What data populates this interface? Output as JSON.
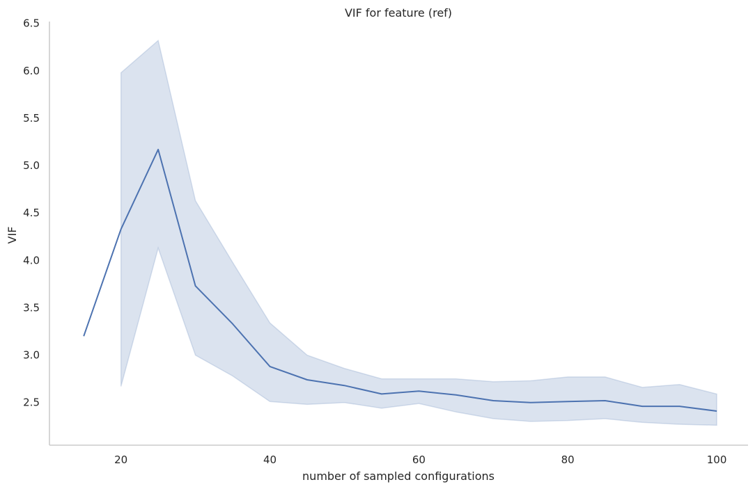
{
  "chart_data": {
    "type": "line",
    "title": "VIF for feature (ref)",
    "xlabel": "number of sampled configurations",
    "ylabel": "VIF",
    "xlim": [
      10.4,
      104.2
    ],
    "ylim": [
      2.05,
      6.52
    ],
    "xticks": [
      20,
      40,
      60,
      80,
      100
    ],
    "yticks": [
      2.5,
      3.0,
      3.5,
      4.0,
      4.5,
      5.0,
      5.5,
      6.0,
      6.5
    ],
    "grid": false,
    "series": [
      {
        "color": "#4c72b0",
        "band_color": "#4c72b0",
        "x": [
          15,
          20,
          25,
          30,
          35,
          40,
          45,
          50,
          55,
          60,
          65,
          70,
          75,
          80,
          85,
          90,
          95,
          100
        ],
        "values": [
          3.2,
          4.33,
          5.17,
          3.73,
          3.33,
          2.88,
          2.74,
          2.68,
          2.59,
          2.62,
          2.58,
          2.52,
          2.5,
          2.51,
          2.52,
          2.46,
          2.46,
          2.41
        ],
        "band_x": [
          20,
          25,
          30,
          35,
          40,
          45,
          50,
          55,
          60,
          65,
          70,
          75,
          80,
          85,
          90,
          95,
          100
        ],
        "band_lower": [
          2.67,
          4.13,
          3.0,
          2.78,
          2.51,
          2.48,
          2.5,
          2.44,
          2.49,
          2.4,
          2.33,
          2.3,
          2.31,
          2.33,
          2.29,
          2.27,
          2.26
        ],
        "band_upper": [
          5.98,
          6.32,
          4.63,
          3.98,
          3.34,
          3.0,
          2.86,
          2.75,
          2.75,
          2.75,
          2.72,
          2.73,
          2.77,
          2.77,
          2.66,
          2.69,
          2.59
        ]
      }
    ]
  }
}
